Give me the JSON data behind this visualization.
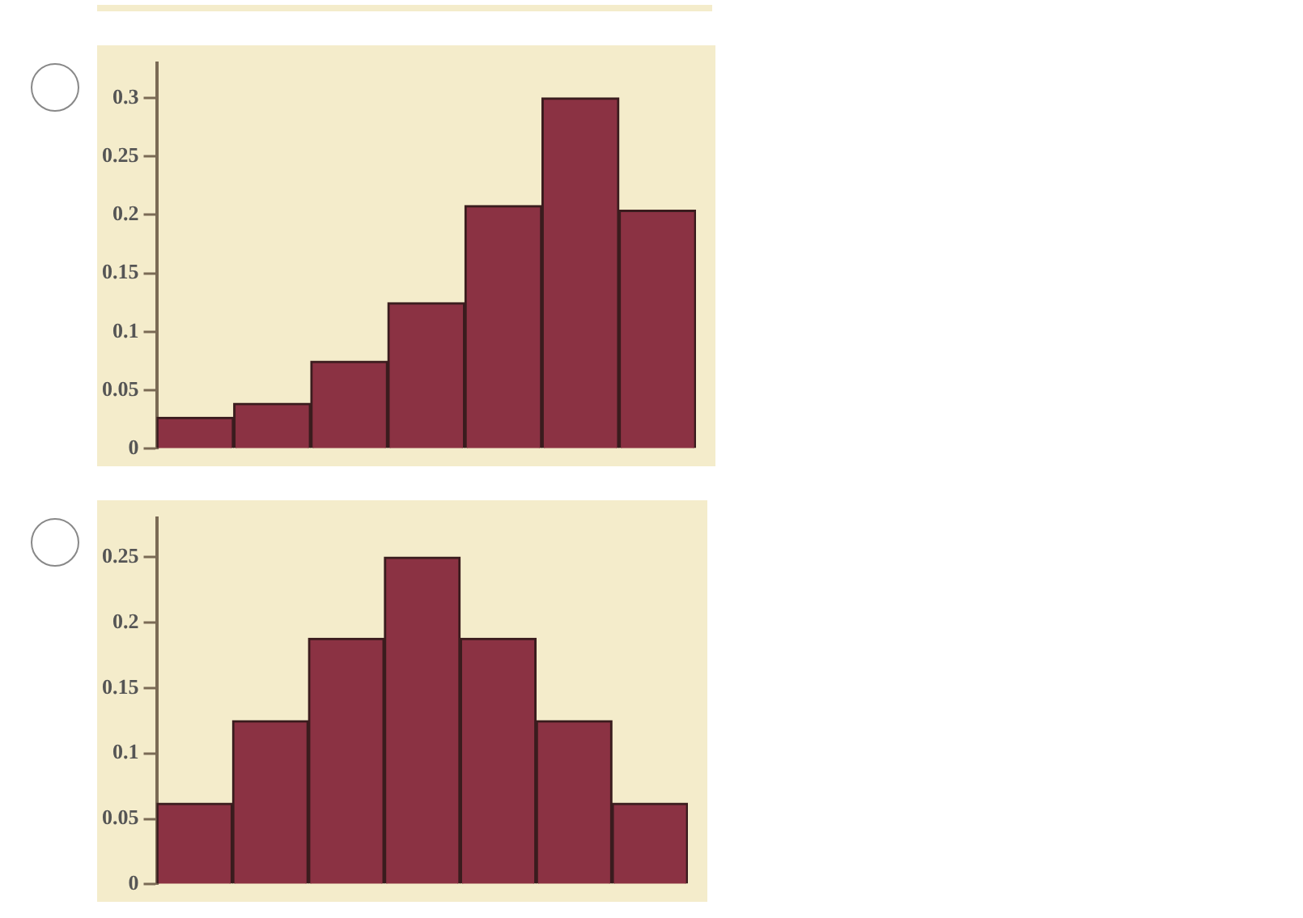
{
  "chart_data": [
    {
      "type": "bar",
      "categories": [
        null,
        null,
        null,
        null,
        null,
        null,
        null
      ],
      "values": [
        0.027,
        0.039,
        0.075,
        0.125,
        0.208,
        0.3,
        0.204
      ],
      "color": "#8b3243",
      "ylim": [
        0,
        0.33
      ],
      "yticks": [
        0,
        0.05,
        0.1,
        0.15,
        0.2,
        0.25,
        0.3
      ],
      "tick_labels": "y",
      "grid": false,
      "legend": false
    },
    {
      "type": "bar",
      "categories": [
        null,
        null,
        null,
        null,
        null,
        null,
        null
      ],
      "values": [
        0.062,
        0.125,
        0.188,
        0.25,
        0.188,
        0.125,
        0.062
      ],
      "color": "#8b3243",
      "ylim": [
        0,
        0.28
      ],
      "yticks": [
        0,
        0.05,
        0.1,
        0.15,
        0.2,
        0.25
      ],
      "tick_labels": "y",
      "grid": false,
      "legend": false
    }
  ]
}
